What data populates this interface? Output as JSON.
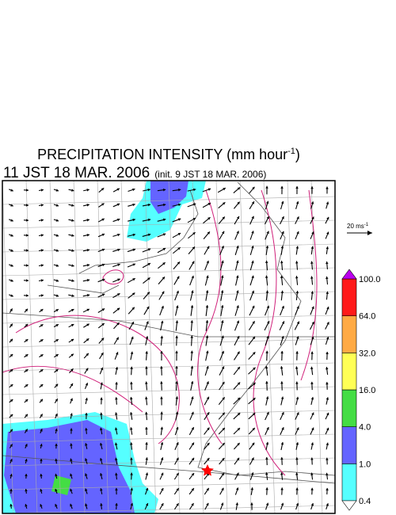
{
  "header": {
    "title": "PRECIPITATION INTENSITY (mm hour",
    "title_sup": "-1",
    "title_end": ")",
    "valid_time": "11 JST 18 MAR. 2006",
    "init_time": "(init. 9 JST 18 MAR. 2006)"
  },
  "wind_scale": {
    "label": "20 ms",
    "label_sup": "-1"
  },
  "colorbar": {
    "labels": [
      "0.4",
      "1.0",
      "4.0",
      "16.0",
      "32.0",
      "64.0",
      "100.0"
    ],
    "colors": [
      "#55ffff",
      "#6464ff",
      "#44dd44",
      "#ffff55",
      "#ffaa44",
      "#ff1a1a"
    ],
    "under_color": "#ffffff",
    "over_color": "#bb00ee"
  }
}
